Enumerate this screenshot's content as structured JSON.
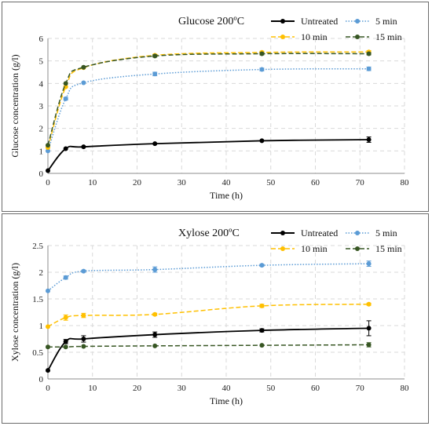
{
  "chart_data": [
    {
      "type": "line",
      "title": "Glucose 200ºC",
      "xlabel": "Time (h)",
      "ylabel": "Glucose concentration (g/l)",
      "xlim": [
        0,
        80
      ],
      "ylim": [
        0,
        6
      ],
      "xticks": [
        0,
        10,
        20,
        30,
        40,
        50,
        60,
        70,
        80
      ],
      "yticks": [
        0,
        1,
        2,
        3,
        4,
        5,
        6
      ],
      "grid": true,
      "legend_position": "top-right",
      "x": [
        0,
        4,
        8,
        24,
        48,
        72
      ],
      "series": [
        {
          "name": "Untreated",
          "color": "#000000",
          "dash": "solid",
          "values": [
            0.12,
            1.1,
            1.18,
            1.32,
            1.45,
            1.5
          ],
          "errors": [
            0,
            0,
            0,
            0,
            0,
            0.12
          ]
        },
        {
          "name": "5 min",
          "color": "#5b9bd5",
          "dash": "dotted",
          "values": [
            1.0,
            3.32,
            4.03,
            4.42,
            4.62,
            4.65
          ],
          "errors": [
            0,
            0.06,
            0,
            0.08,
            0.06,
            0.08
          ]
        },
        {
          "name": "10 min",
          "color": "#ffc000",
          "dash": "dashed",
          "values": [
            1.15,
            3.85,
            4.7,
            5.25,
            5.38,
            5.4
          ],
          "errors": [
            0,
            0,
            0,
            0.05,
            0.05,
            0.06
          ]
        },
        {
          "name": "15 min",
          "color": "#375623",
          "dash": "dashed",
          "values": [
            1.25,
            4.0,
            4.72,
            5.22,
            5.32,
            5.32
          ],
          "errors": [
            0,
            0,
            0,
            0.05,
            0.05,
            0.05
          ]
        }
      ]
    },
    {
      "type": "line",
      "title": "Xylose 200ºC",
      "xlabel": "Time (h)",
      "ylabel": "Xylose concentration (g/l)",
      "xlim": [
        0,
        80
      ],
      "ylim": [
        0,
        2.5
      ],
      "xticks": [
        0,
        10,
        20,
        30,
        40,
        50,
        60,
        70,
        80
      ],
      "yticks": [
        0,
        0.5,
        1,
        1.5,
        2,
        2.5
      ],
      "grid": true,
      "legend_position": "top-right",
      "x": [
        0,
        4,
        8,
        24,
        48,
        72
      ],
      "series": [
        {
          "name": "Untreated",
          "color": "#000000",
          "dash": "solid",
          "values": [
            0.16,
            0.7,
            0.75,
            0.83,
            0.91,
            0.95
          ],
          "errors": [
            0,
            0.04,
            0.06,
            0.05,
            0.03,
            0.14
          ]
        },
        {
          "name": "5 min",
          "color": "#5b9bd5",
          "dash": "dotted",
          "values": [
            1.65,
            1.9,
            2.02,
            2.05,
            2.13,
            2.16
          ],
          "errors": [
            0,
            0.03,
            0.02,
            0.05,
            0.02,
            0.05
          ]
        },
        {
          "name": "10 min",
          "color": "#ffc000",
          "dash": "dashed",
          "values": [
            0.98,
            1.15,
            1.19,
            1.21,
            1.37,
            1.4
          ],
          "errors": [
            0,
            0.05,
            0.04,
            0.02,
            0.03,
            0.02
          ]
        },
        {
          "name": "15 min",
          "color": "#375623",
          "dash": "dashed",
          "values": [
            0.6,
            0.6,
            0.61,
            0.62,
            0.63,
            0.64
          ],
          "errors": [
            0,
            0,
            0,
            0,
            0,
            0.04
          ]
        }
      ]
    }
  ]
}
